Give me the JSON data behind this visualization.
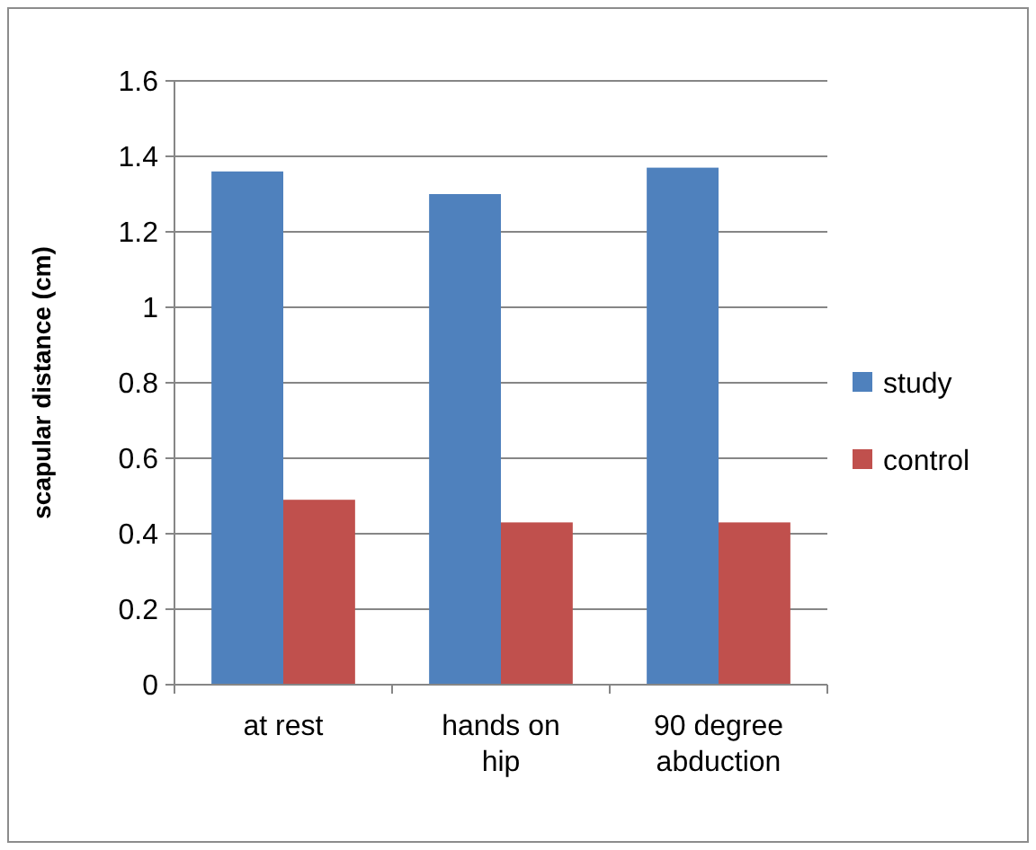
{
  "chart_data": {
    "type": "bar",
    "ylabel": "scapular distance (cm)",
    "categories": [
      "at rest",
      "hands on hip",
      "90 degree abduction"
    ],
    "series": [
      {
        "name": "study",
        "color": "#4f81bd",
        "values": [
          1.36,
          1.3,
          1.37
        ]
      },
      {
        "name": "control",
        "color": "#c0504d",
        "values": [
          0.49,
          0.43,
          0.43
        ]
      }
    ],
    "ylim": [
      0,
      1.6
    ],
    "yticks": [
      0,
      {
        "value": 0.2,
        "label": "0.2"
      },
      {
        "value": 0.4,
        "label": "0.4"
      },
      {
        "value": 0.6,
        "label": "0.6"
      },
      {
        "value": 0.8,
        "label": "0.8"
      },
      1,
      {
        "value": 1.2,
        "label": "1.2"
      },
      {
        "value": 1.4,
        "label": "1.4"
      },
      {
        "value": 1.6,
        "label": "1.6"
      }
    ],
    "grid": "y",
    "legend": "right"
  }
}
